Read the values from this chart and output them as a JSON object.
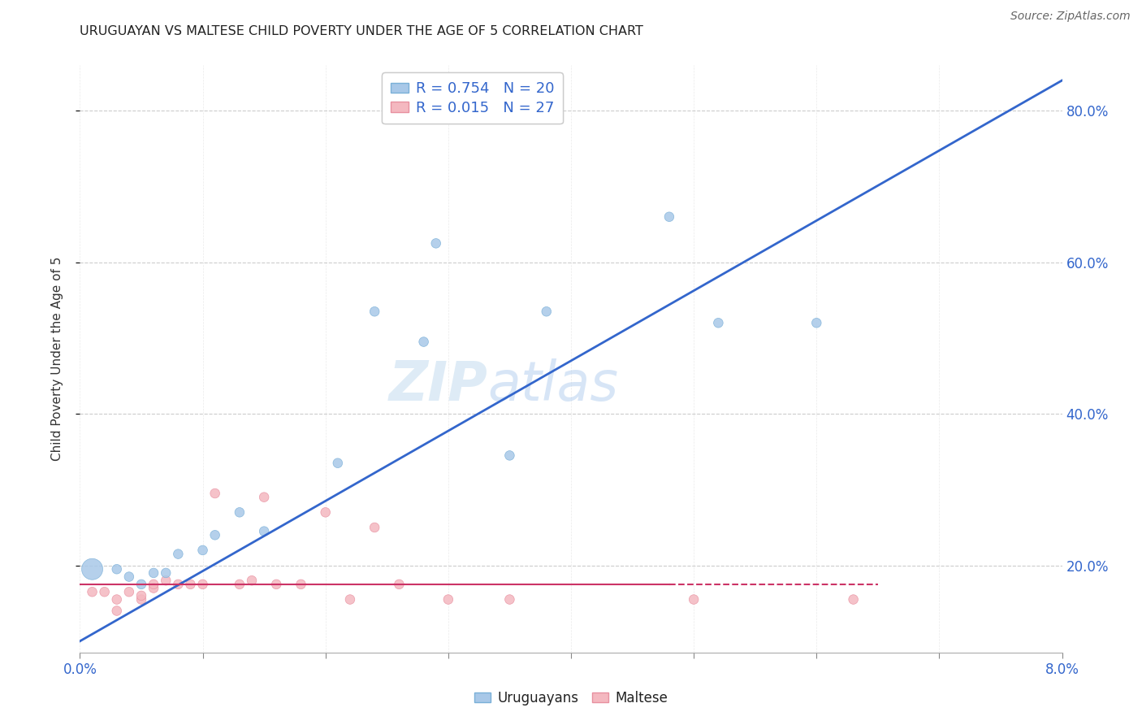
{
  "title": "URUGUAYAN VS MALTESE CHILD POVERTY UNDER THE AGE OF 5 CORRELATION CHART",
  "source": "Source: ZipAtlas.com",
  "ylabel": "Child Poverty Under the Age of 5",
  "xlim": [
    0.0,
    0.08
  ],
  "ylim": [
    0.085,
    0.86
  ],
  "blue_color": "#a8c8e8",
  "blue_edge_color": "#7ab0d8",
  "pink_color": "#f4b8c0",
  "pink_edge_color": "#e890a0",
  "blue_line_color": "#3366cc",
  "pink_line_color": "#cc3366",
  "pink_line_dash": [
    6,
    4
  ],
  "legend_blue_label": "R = 0.754   N = 20",
  "legend_pink_label": "R = 0.015   N = 27",
  "legend_uruguayans": "Uruguayans",
  "legend_maltese": "Maltese",
  "watermark_zip": "ZIP",
  "watermark_atlas": "atlas",
  "blue_line_x0": 0.0,
  "blue_line_y0": 0.1,
  "blue_line_x1": 0.08,
  "blue_line_y1": 0.84,
  "pink_line_x0": 0.0,
  "pink_line_x1": 0.065,
  "pink_line_y": 0.175,
  "blue_scatter_x": [
    0.001,
    0.003,
    0.004,
    0.005,
    0.006,
    0.007,
    0.008,
    0.01,
    0.011,
    0.013,
    0.015,
    0.021,
    0.024,
    0.028,
    0.029,
    0.035,
    0.038,
    0.048,
    0.052,
    0.06
  ],
  "blue_scatter_y": [
    0.195,
    0.195,
    0.185,
    0.175,
    0.19,
    0.19,
    0.215,
    0.22,
    0.24,
    0.27,
    0.245,
    0.335,
    0.535,
    0.495,
    0.625,
    0.345,
    0.535,
    0.66,
    0.52,
    0.52
  ],
  "blue_scatter_sizes": [
    350,
    70,
    70,
    70,
    70,
    70,
    70,
    70,
    70,
    70,
    70,
    70,
    70,
    70,
    70,
    70,
    70,
    70,
    70,
    70
  ],
  "pink_scatter_x": [
    0.001,
    0.002,
    0.003,
    0.003,
    0.004,
    0.005,
    0.005,
    0.006,
    0.006,
    0.007,
    0.008,
    0.009,
    0.01,
    0.011,
    0.013,
    0.014,
    0.015,
    0.016,
    0.018,
    0.02,
    0.022,
    0.024,
    0.026,
    0.03,
    0.035,
    0.05,
    0.063
  ],
  "pink_scatter_y": [
    0.165,
    0.165,
    0.155,
    0.14,
    0.165,
    0.155,
    0.16,
    0.17,
    0.175,
    0.18,
    0.175,
    0.175,
    0.175,
    0.295,
    0.175,
    0.18,
    0.29,
    0.175,
    0.175,
    0.27,
    0.155,
    0.25,
    0.175,
    0.155,
    0.155,
    0.155,
    0.155
  ],
  "pink_scatter_sizes": [
    70,
    70,
    70,
    70,
    70,
    70,
    70,
    70,
    70,
    70,
    70,
    70,
    70,
    70,
    70,
    70,
    70,
    70,
    70,
    70,
    70,
    70,
    70,
    70,
    70,
    70,
    70
  ],
  "background_color": "#ffffff",
  "grid_color": "#cccccc"
}
